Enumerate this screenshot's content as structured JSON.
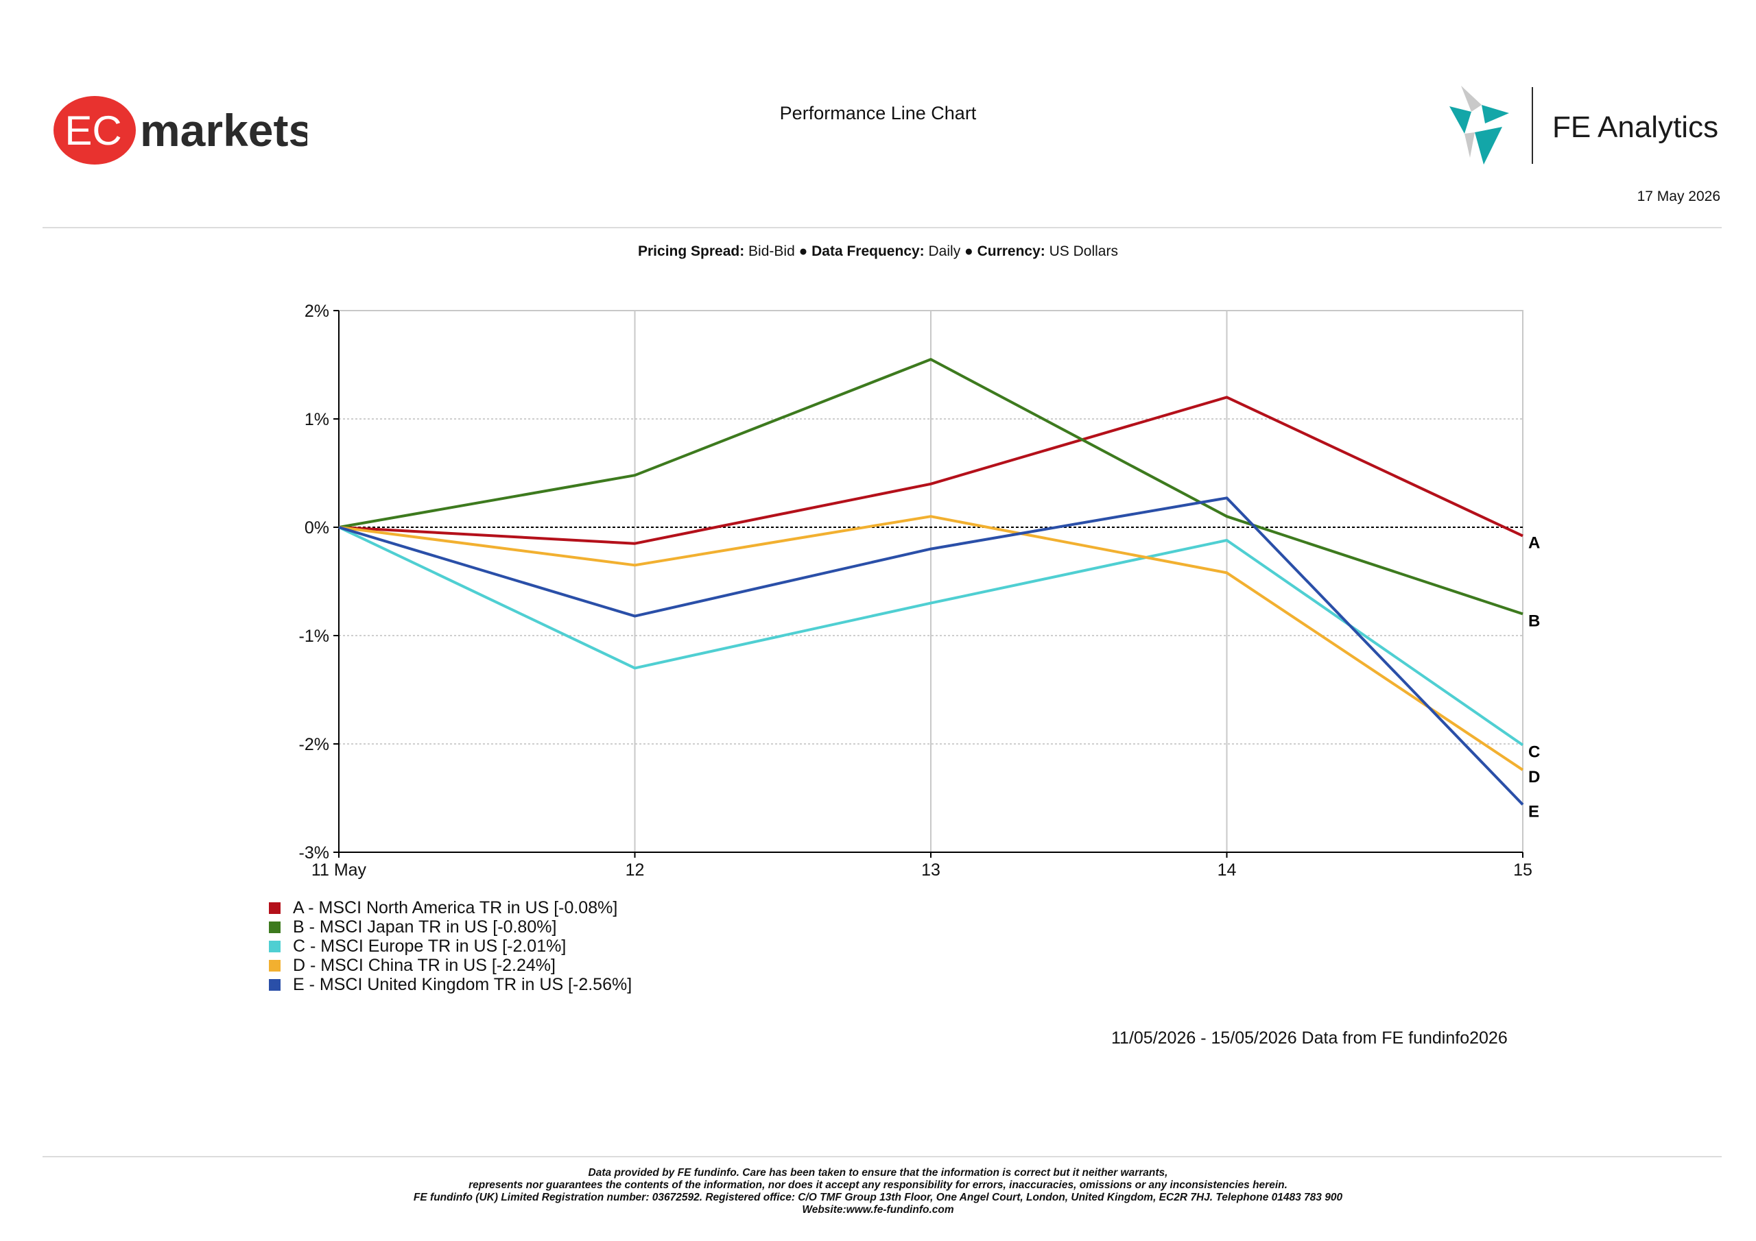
{
  "header": {
    "brand_left": "markets",
    "brand_left_badge": "EC",
    "brand_right": "FE Analytics",
    "title": "Performance Line Chart",
    "date": "17 May 2026"
  },
  "colors": {
    "ec_red": "#e8322f",
    "fe_teal": "#13a6a8",
    "fe_grey": "#b9b9b9"
  },
  "spec": {
    "pricing_label": "Pricing Spread:",
    "pricing_value": "Bid-Bid",
    "frequency_label": "Data Frequency:",
    "frequency_value": "Daily",
    "currency_label": "Currency:",
    "currency_value": "US Dollars",
    "separator": "●"
  },
  "chart_data": {
    "type": "line",
    "title": "",
    "xlabel": "",
    "ylabel": "",
    "x": [
      "11 May",
      "12",
      "13",
      "14",
      "15"
    ],
    "yticks": [
      "2%",
      "1%",
      "0%",
      "-1%",
      "-2%",
      "-3%"
    ],
    "ylim": [
      -3,
      2
    ],
    "grid": true,
    "legend_position": "bottom-left",
    "series": [
      {
        "id": "A",
        "name": "A - MSCI North America TR in US [-0.08%]",
        "color": "#b4101a",
        "values": [
          0,
          -0.15,
          0.4,
          1.2,
          -0.08
        ]
      },
      {
        "id": "B",
        "name": "B - MSCI Japan TR in US [-0.80%]",
        "color": "#3d7a1e",
        "values": [
          0,
          0.48,
          1.55,
          0.1,
          -0.8
        ]
      },
      {
        "id": "C",
        "name": "C - MSCI Europe TR in US [-2.01%]",
        "color": "#4fcfd2",
        "values": [
          0,
          -1.3,
          -0.7,
          -0.12,
          -2.01
        ]
      },
      {
        "id": "D",
        "name": "D - MSCI China TR in US [-2.24%]",
        "color": "#f2b030",
        "values": [
          0,
          -0.35,
          0.1,
          -0.42,
          -2.24
        ]
      },
      {
        "id": "E",
        "name": "E - MSCI United Kingdom TR in US [-2.56%]",
        "color": "#2a4fa8",
        "values": [
          0,
          -0.82,
          -0.2,
          0.27,
          -2.56
        ]
      }
    ]
  },
  "footer": {
    "date_range": "11/05/2026 - 15/05/2026 Data from FE fundinfo2026",
    "disclaimer": [
      "Data provided by FE fundinfo. Care has been taken to ensure that the information is correct but it neither warrants,",
      "represents nor guarantees the contents of the information, nor does it accept any responsibility for errors, inaccuracies, omissions or any inconsistencies herein.",
      "FE fundinfo (UK) Limited Registration number: 03672592. Registered office: C/O TMF Group 13th Floor, One Angel Court, London, United Kingdom, EC2R 7HJ. Telephone 01483 783 900",
      "Website:www.fe-fundinfo.com"
    ]
  }
}
